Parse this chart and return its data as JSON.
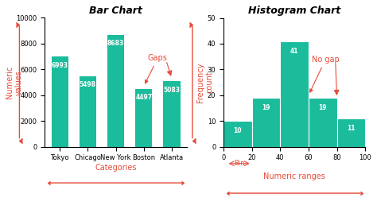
{
  "bar_categories": [
    "Tokyo",
    "Chicago",
    "New York",
    "Boston",
    "Atlanta"
  ],
  "bar_values": [
    6993,
    5498,
    8683,
    4497,
    5083
  ],
  "bar_color": "#1ABC9C",
  "bar_title": "Bar Chart",
  "bar_ylabel": "Numeric\nvalues",
  "bar_xlabel": "Categories",
  "bar_ylim": [
    0,
    10000
  ],
  "bar_yticks": [
    0,
    2000,
    4000,
    6000,
    8000,
    10000
  ],
  "gaps_label": "Gaps",
  "hist_values": [
    10,
    19,
    41,
    19,
    11
  ],
  "hist_bins": [
    0,
    20,
    40,
    60,
    80,
    100
  ],
  "hist_color": "#1ABC9C",
  "hist_title": "Histogram Chart",
  "hist_ylabel": "Frequency\ncount",
  "hist_xlabel": "Numeric ranges",
  "hist_ylim": [
    0,
    50
  ],
  "hist_yticks": [
    0,
    10,
    20,
    30,
    40,
    50
  ],
  "hist_xticks": [
    0,
    20,
    40,
    60,
    80,
    100
  ],
  "no_gap_label": "No gap",
  "annotation_color": "#E74C3C",
  "label_color": "#E74C3C",
  "bg_color": "#FFFFFF",
  "bar_text_color": "#FFFFFF",
  "title_fontsize": 9,
  "label_fontsize": 7,
  "tick_fontsize": 6,
  "value_fontsize": 5.5,
  "annotation_fontsize": 7
}
